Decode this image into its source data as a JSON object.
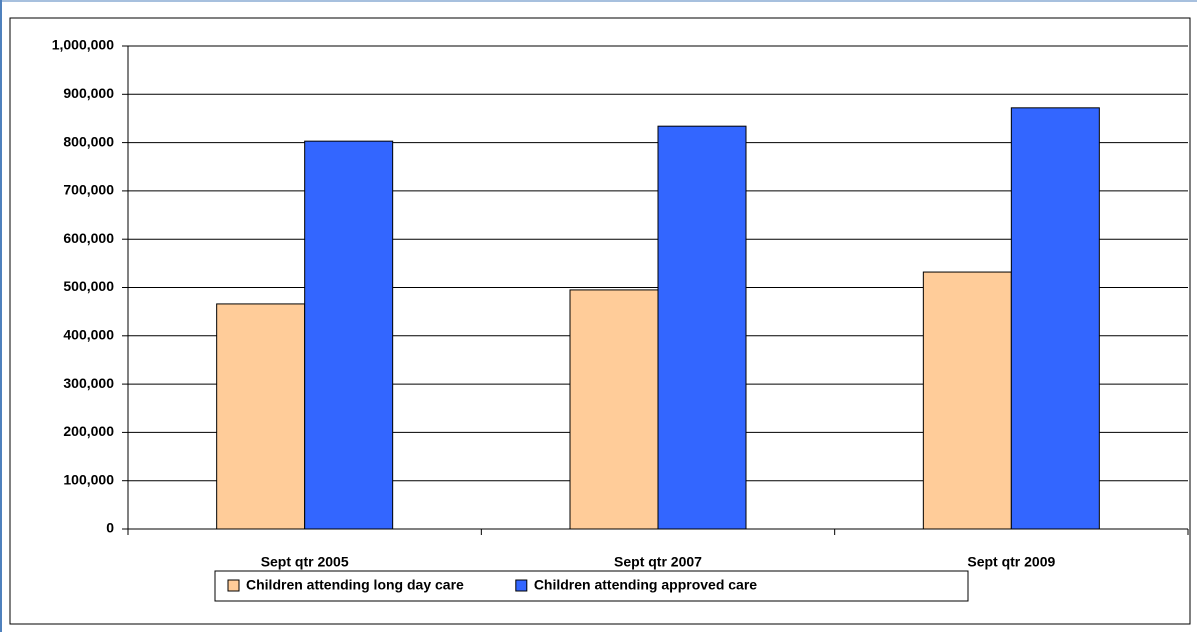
{
  "chart_data": {
    "type": "bar",
    "categories": [
      "Sept qtr 2005",
      "Sept qtr 2007",
      "Sept qtr 2009"
    ],
    "series": [
      {
        "name": "Children attending long day care",
        "color": "#ffcc99",
        "values": [
          466000,
          495000,
          532000
        ]
      },
      {
        "name": "Children attending approved care",
        "color": "#3366ff",
        "values": [
          803000,
          834000,
          872000
        ]
      }
    ],
    "ylim": [
      0,
      1000000
    ],
    "yticks": [
      0,
      {
        "value": 100000,
        "label": "100,000"
      },
      {
        "value": 200000,
        "label": "200,000"
      },
      {
        "value": 300000,
        "label": "300,000"
      },
      {
        "value": 400000,
        "label": "400,000"
      },
      {
        "value": 500000,
        "label": "500,000"
      },
      {
        "value": 600000,
        "label": "600,000"
      },
      {
        "value": 700000,
        "label": "700,000"
      },
      {
        "value": 800000,
        "label": "800,000"
      },
      {
        "value": 900000,
        "label": "900,000"
      },
      {
        "value": 1000000,
        "label": "1,000,000"
      }
    ],
    "grid": true,
    "legend": "bottom"
  }
}
